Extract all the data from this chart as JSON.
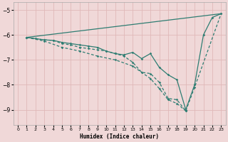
{
  "xlabel": "Humidex (Indice chaleur)",
  "bg_color": "#f0d8d8",
  "grid_color": "#e0b8b8",
  "line_color": "#2e7d72",
  "xlim": [
    -0.5,
    23.5
  ],
  "ylim": [
    -9.6,
    -4.7
  ],
  "yticks": [
    -9,
    -8,
    -7,
    -6,
    -5
  ],
  "xticks": [
    0,
    1,
    2,
    3,
    4,
    5,
    6,
    7,
    8,
    9,
    10,
    11,
    12,
    13,
    14,
    15,
    16,
    17,
    18,
    19,
    20,
    21,
    22,
    23
  ],
  "line1_x": [
    1,
    23
  ],
  "line1_y": [
    -6.1,
    -5.15
  ],
  "line2_x": [
    1,
    2,
    3,
    4,
    5,
    6,
    7,
    8,
    9,
    10,
    11,
    12,
    13,
    14,
    15,
    16,
    17,
    18,
    19,
    20,
    21,
    22,
    23
  ],
  "line2_y": [
    -6.1,
    -6.15,
    -6.2,
    -6.22,
    -6.3,
    -6.35,
    -6.4,
    -6.45,
    -6.5,
    -6.65,
    -6.75,
    -6.8,
    -6.7,
    -6.95,
    -6.75,
    -7.3,
    -7.6,
    -7.8,
    -9.0,
    -8.0,
    -6.0,
    -5.3,
    -5.15
  ],
  "line3_x": [
    1,
    3,
    4,
    5,
    6,
    7,
    8,
    9,
    10,
    11,
    12,
    13,
    14,
    15,
    16,
    17,
    18,
    19,
    20,
    23
  ],
  "line3_y": [
    -6.1,
    -6.2,
    -6.22,
    -6.35,
    -6.4,
    -6.5,
    -6.55,
    -6.6,
    -6.65,
    -6.75,
    -6.85,
    -7.1,
    -7.5,
    -7.55,
    -7.9,
    -8.55,
    -8.6,
    -9.05,
    -8.1,
    -5.15
  ],
  "line4_x": [
    1,
    3,
    5,
    7,
    9,
    11,
    13,
    15,
    16,
    17,
    18,
    19
  ],
  "line4_y": [
    -6.1,
    -6.25,
    -6.5,
    -6.65,
    -6.85,
    -7.0,
    -7.25,
    -7.75,
    -8.15,
    -8.6,
    -8.75,
    -9.05
  ]
}
